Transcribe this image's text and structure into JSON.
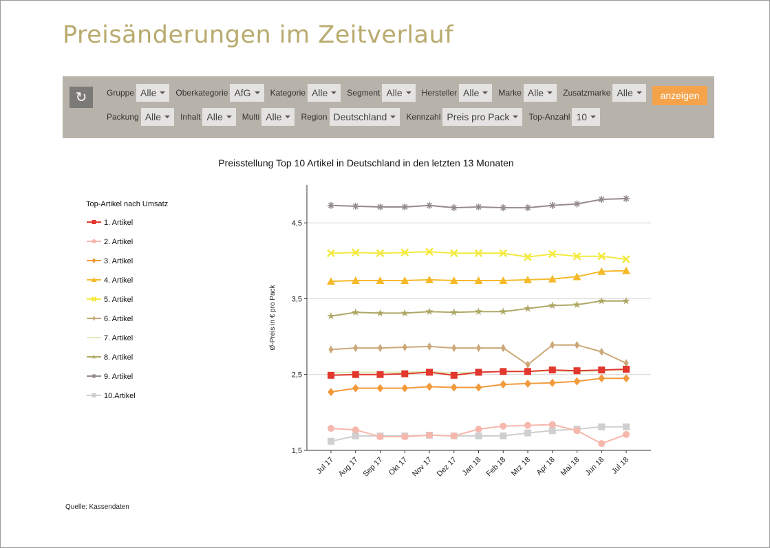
{
  "page": {
    "title": "Preisänderungen im Zeitverlauf",
    "source": "Quelle:  Kassendaten"
  },
  "filters": {
    "row1": [
      {
        "label": "Gruppe",
        "value": "Alle"
      },
      {
        "label": "Oberkategorie",
        "value": "AfG"
      },
      {
        "label": "Kategorie",
        "value": "Alle"
      },
      {
        "label": "Segment",
        "value": "Alle"
      },
      {
        "label": "Hersteller",
        "value": "Alle"
      },
      {
        "label": "Marke",
        "value": "Alle"
      },
      {
        "label": "Zusatzmarke",
        "value": "Alle"
      }
    ],
    "row2": [
      {
        "label": "Packung",
        "value": "Alle"
      },
      {
        "label": "Inhalt",
        "value": "Alle"
      },
      {
        "label": "Multi",
        "value": "Alle"
      },
      {
        "label": "Region",
        "value": "Deutschland"
      },
      {
        "label": "Kennzahl",
        "value": "Preis pro Pack"
      },
      {
        "label": "Top-Anzahl",
        "value": "10"
      }
    ],
    "show_label": "anzeigen",
    "refresh_icon": "refresh-icon"
  },
  "chart_data": {
    "type": "line",
    "title": "Preisstellung Top 10 Artikel in Deutschland in den letzten 13 Monaten",
    "legend_title": "Top-Artikel nach Umsatz",
    "legend_position": "left",
    "ylabel": "Ø-Preis in € pro Pack",
    "xlabel": "",
    "ylim": [
      1.5,
      5.0
    ],
    "yticks": [
      1.5,
      2.5,
      3.5,
      4.5
    ],
    "ytick_labels": [
      "1,5",
      "2,5",
      "3,5",
      "4,5"
    ],
    "grid": true,
    "categories": [
      "Jul 17",
      "Aug 17",
      "Sep 17",
      "Okt 17",
      "Nov 17",
      "Dez 17",
      "Jan 18",
      "Feb 18",
      "Mrz 18",
      "Apr 18",
      "Mai 18",
      "Jun 18",
      "Jul 18"
    ],
    "series": [
      {
        "name": "1. Artikel",
        "color": "#e2372d",
        "marker": "square",
        "values": [
          2.49,
          2.5,
          2.5,
          2.51,
          2.53,
          2.49,
          2.53,
          2.54,
          2.54,
          2.56,
          2.55,
          2.56,
          2.57
        ]
      },
      {
        "name": "2. Artikel",
        "color": "#f6b7ac",
        "marker": "circle",
        "values": [
          1.79,
          1.77,
          1.68,
          1.68,
          1.7,
          1.69,
          1.78,
          1.82,
          1.83,
          1.84,
          1.76,
          1.59,
          1.71
        ]
      },
      {
        "name": "3. Artikel",
        "color": "#f39a3c",
        "marker": "diamond",
        "values": [
          2.27,
          2.32,
          2.32,
          2.32,
          2.34,
          2.33,
          2.33,
          2.37,
          2.38,
          2.39,
          2.41,
          2.45,
          2.45
        ]
      },
      {
        "name": "4. Artikel",
        "color": "#f6b92a",
        "marker": "triangle",
        "values": [
          3.73,
          3.74,
          3.74,
          3.74,
          3.75,
          3.74,
          3.74,
          3.74,
          3.75,
          3.76,
          3.79,
          3.86,
          3.87
        ]
      },
      {
        "name": "5. Artikel",
        "color": "#f3ea3f",
        "marker": "x",
        "values": [
          4.1,
          4.11,
          4.1,
          4.11,
          4.12,
          4.1,
          4.1,
          4.1,
          4.05,
          4.09,
          4.06,
          4.06,
          4.02
        ]
      },
      {
        "name": "6. Artikel",
        "color": "#cba878",
        "marker": "thin-diamond",
        "values": [
          2.83,
          2.85,
          2.85,
          2.86,
          2.87,
          2.85,
          2.85,
          2.85,
          2.63,
          2.89,
          2.89,
          2.8,
          2.65
        ]
      },
      {
        "name": "7. Artikel",
        "color": "#dfe9b9",
        "marker": "line",
        "values": [
          2.52,
          2.53,
          2.53,
          2.53,
          2.54,
          2.52,
          2.53,
          2.54,
          2.54,
          2.55,
          2.54,
          2.55,
          2.56
        ]
      },
      {
        "name": "8. Artikel",
        "color": "#ada764",
        "marker": "star",
        "values": [
          3.27,
          3.32,
          3.31,
          3.31,
          3.33,
          3.32,
          3.33,
          3.33,
          3.37,
          3.41,
          3.42,
          3.47,
          3.47
        ]
      },
      {
        "name": "9. Artikel",
        "color": "#958a8c",
        "marker": "asterisk",
        "values": [
          4.73,
          4.72,
          4.71,
          4.71,
          4.73,
          4.7,
          4.71,
          4.7,
          4.7,
          4.73,
          4.75,
          4.81,
          4.82
        ]
      },
      {
        "name": "10.Artikel",
        "color": "#cfcfcf",
        "marker": "square",
        "values": [
          1.62,
          1.69,
          1.69,
          1.69,
          1.7,
          1.69,
          1.69,
          1.69,
          1.73,
          1.76,
          1.78,
          1.81,
          1.81
        ]
      }
    ]
  }
}
